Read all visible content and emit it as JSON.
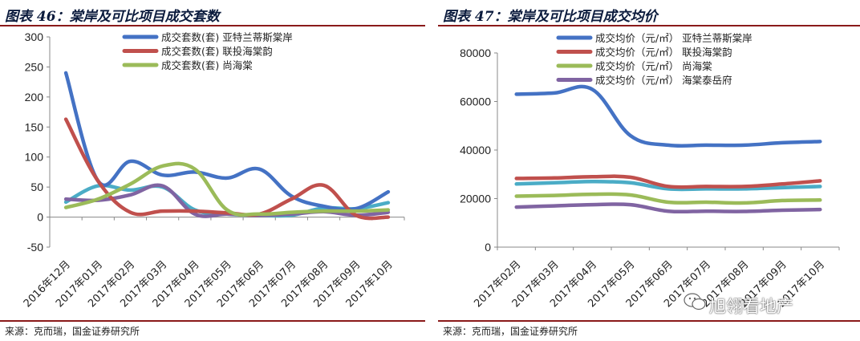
{
  "left": {
    "title": "图表 46：棠岸及可比项目成交套数",
    "source": "来源：克而瑞，国金证券研究所"
  },
  "right": {
    "title": "图表 47：棠岸及可比项目成交均价",
    "source": "来源：克而瑞，国金证券研究所"
  },
  "watermark": "旭翎看地产",
  "colors": {
    "blue": "#4472c4",
    "red": "#c0504d",
    "green": "#9bbb59",
    "teal": "#4bacc6",
    "purple": "#8064a2",
    "rule": "#8a1a1a"
  },
  "chart_data": [
    {
      "type": "line",
      "title": "棠岸及可比项目成交套数",
      "categories": [
        "2016年12月",
        "2017年01月",
        "2017年02月",
        "2017年03月",
        "2017年04月",
        "2017年05月",
        "2017年06月",
        "2017年07月",
        "2017年08月",
        "2017年09月",
        "2017年10月"
      ],
      "ylim": [
        -50,
        300
      ],
      "yticks": [
        -50,
        0,
        50,
        100,
        150,
        200,
        250,
        300
      ],
      "legend_position": "top-right",
      "series": [
        {
          "name": "成交套数(套) 亚特兰蒂斯棠岸",
          "color": "#4472c4",
          "values": [
            240,
            60,
            93,
            70,
            75,
            65,
            80,
            35,
            18,
            14,
            42
          ]
        },
        {
          "name": "成交套数(套) 联投海棠韵",
          "color": "#c0504d",
          "values": [
            163,
            60,
            8,
            10,
            10,
            7,
            5,
            30,
            53,
            3,
            0
          ]
        },
        {
          "name": "成交套数(套) 尚海棠",
          "color": "#9bbb59",
          "values": [
            16,
            30,
            55,
            85,
            80,
            12,
            5,
            8,
            10,
            10,
            12
          ]
        },
        {
          "name": "",
          "color": "#4bacc6",
          "values": [
            25,
            52,
            45,
            50,
            12,
            5,
            3,
            3,
            15,
            14,
            24
          ]
        },
        {
          "name": "",
          "color": "#8064a2",
          "values": [
            30,
            28,
            37,
            52,
            5,
            5,
            3,
            5,
            9,
            3,
            8
          ]
        }
      ]
    },
    {
      "type": "line",
      "title": "棠岸及可比项目成交均价",
      "categories": [
        "2017年02月",
        "2017年03月",
        "2017年04月",
        "2017年05月",
        "2017年06月",
        "2017年07月",
        "2017年08月",
        "2017年09月",
        "2017年10月"
      ],
      "ylim": [
        0,
        80000
      ],
      "yticks": [
        0,
        20000,
        40000,
        60000,
        80000
      ],
      "legend_position": "top",
      "series": [
        {
          "name": "成交均价（元/㎡） 亚特兰蒂斯棠岸",
          "color": "#4472c4",
          "values": [
            63000,
            63500,
            65000,
            46000,
            42000,
            42000,
            42000,
            43000,
            43500
          ]
        },
        {
          "name": "成交均价（元/㎡） 联投海棠韵",
          "color": "#c0504d",
          "values": [
            28300,
            28500,
            29000,
            28800,
            25000,
            25000,
            25000,
            26000,
            27300
          ]
        },
        {
          "name": "成交均价（元/㎡） 尚海棠",
          "color": "#9bbb59",
          "values": [
            21000,
            21300,
            21800,
            21500,
            18500,
            18500,
            18200,
            19200,
            19400
          ]
        },
        {
          "name": "成交均价（元/㎡） 海棠泰岳府",
          "color": "#8064a2",
          "values": [
            16500,
            17000,
            17500,
            17500,
            14800,
            14800,
            14700,
            15200,
            15500
          ]
        },
        {
          "name": "",
          "color": "#4bacc6",
          "values": [
            26000,
            26500,
            27000,
            26500,
            24000,
            24000,
            24000,
            24500,
            25000
          ]
        }
      ]
    }
  ]
}
